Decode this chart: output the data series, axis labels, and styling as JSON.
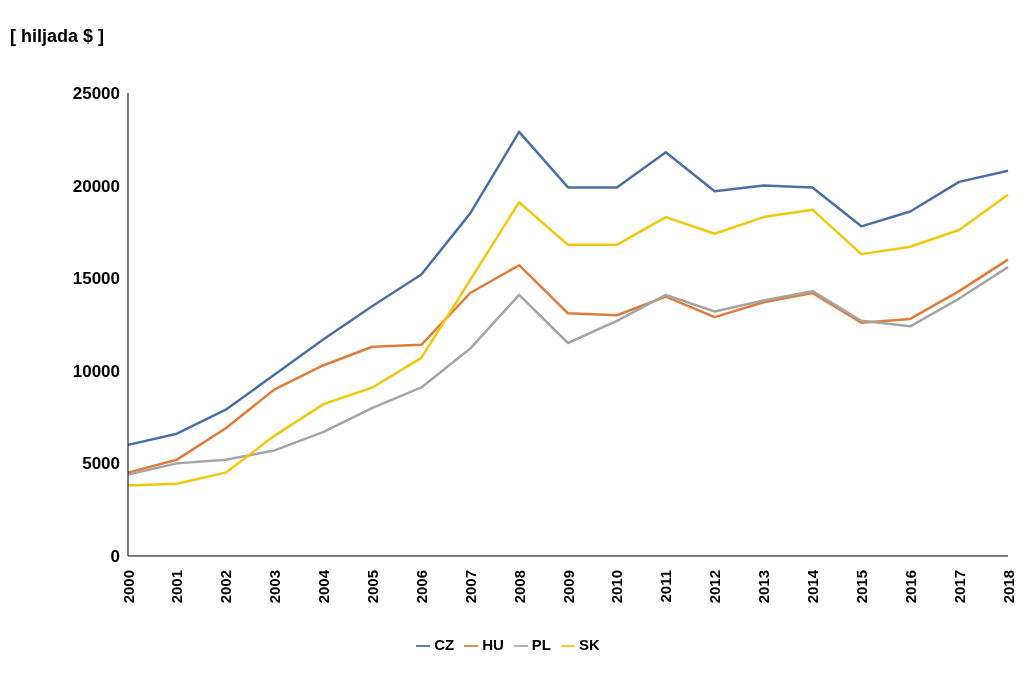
{
  "chart_data": {
    "type": "line",
    "ylabel": "[ hiljada $ ]",
    "categories": [
      "2000",
      "2001",
      "2002",
      "2003",
      "2004",
      "2005",
      "2006",
      "2007",
      "2008",
      "2009",
      "2010",
      "2011",
      "2012",
      "2013",
      "2014",
      "2015",
      "2016",
      "2017",
      "2018"
    ],
    "series": [
      {
        "name": "CZ",
        "color": "#4a6fa5",
        "values": [
          6000,
          6600,
          7900,
          9800,
          11700,
          13500,
          15200,
          18500,
          22900,
          19900,
          19900,
          21800,
          19700,
          20000,
          19900,
          17800,
          18600,
          20200,
          20800
        ]
      },
      {
        "name": "HU",
        "color": "#e07b39",
        "values": [
          4500,
          5200,
          6900,
          9000,
          10300,
          11300,
          11400,
          14200,
          15700,
          13100,
          13000,
          14000,
          12900,
          13700,
          14200,
          12600,
          12800,
          14300,
          16000
        ]
      },
      {
        "name": "PL",
        "color": "#a5a5a5",
        "values": [
          4400,
          5000,
          5200,
          5700,
          6700,
          8000,
          9100,
          11200,
          14100,
          11500,
          12700,
          14100,
          13200,
          13800,
          14300,
          12700,
          12400,
          13900,
          15600
        ]
      },
      {
        "name": "SK",
        "color": "#f2c80f",
        "values": [
          3800,
          3900,
          4500,
          6500,
          8200,
          9100,
          10700,
          14900,
          19100,
          16800,
          16800,
          18300,
          17400,
          18300,
          18700,
          16300,
          16700,
          17600,
          19500
        ]
      }
    ],
    "ylim": [
      0,
      25000
    ],
    "yticks": [
      0,
      5000,
      10000,
      15000,
      20000,
      25000
    ],
    "grid": false,
    "legend": "bottom",
    "marker": "none",
    "line_style": "solid"
  }
}
